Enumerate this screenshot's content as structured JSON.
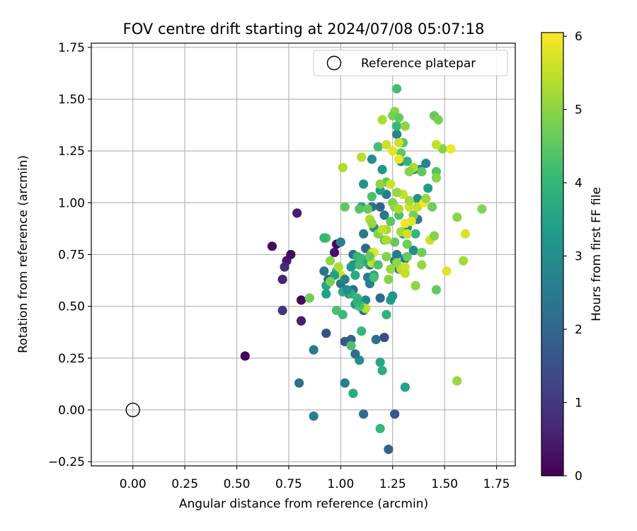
{
  "chart_data": {
    "type": "scatter",
    "title": "FOV centre drift starting at 2024/07/08 05:07:18",
    "xlabel": "Angular distance from reference (arcmin)",
    "ylabel": "Rotation from reference (arcmin)",
    "xlim": [
      -0.2,
      1.84
    ],
    "ylim": [
      -0.27,
      1.77
    ],
    "xticks": [
      0.0,
      0.25,
      0.5,
      0.75,
      1.0,
      1.25,
      1.5,
      1.75
    ],
    "xtick_labels": [
      "0.00",
      "0.25",
      "0.50",
      "0.75",
      "1.00",
      "1.25",
      "1.50",
      "1.75"
    ],
    "yticks": [
      -0.25,
      0.0,
      0.25,
      0.5,
      0.75,
      1.0,
      1.25,
      1.5,
      1.75
    ],
    "ytick_labels": [
      "−0.25",
      "0.00",
      "0.25",
      "0.50",
      "0.75",
      "1.00",
      "1.25",
      "1.50",
      "1.75"
    ],
    "grid": true,
    "legend": {
      "position": "top-right",
      "label": "Reference platepar"
    },
    "reference_point": {
      "x": 0.0,
      "y": 0.0
    },
    "colorbar": {
      "label": "Hours from first FF file",
      "colormap": "viridis",
      "range": [
        0,
        6.05
      ],
      "ticks": [
        0,
        1,
        2,
        3,
        4,
        5,
        6
      ],
      "tick_labels": [
        "0",
        "1",
        "2",
        "3",
        "4",
        "5",
        "6"
      ]
    },
    "points": [
      [
        0.54,
        0.26,
        0.1
      ],
      [
        0.67,
        0.79,
        0.15
      ],
      [
        0.74,
        0.72,
        0.4
      ],
      [
        0.76,
        0.75,
        0.2
      ],
      [
        0.73,
        0.69,
        0.7
      ],
      [
        0.72,
        0.63,
        0.6
      ],
      [
        0.79,
        0.95,
        0.5
      ],
      [
        0.72,
        0.48,
        0.9
      ],
      [
        0.81,
        0.53,
        0.1
      ],
      [
        0.81,
        0.43,
        0.5
      ],
      [
        0.97,
        0.76,
        0.3
      ],
      [
        0.98,
        0.8,
        0.2
      ],
      [
        0.93,
        0.37,
        1.5
      ],
      [
        1.21,
        0.35,
        1.4
      ],
      [
        1.26,
        -0.02,
        1.7
      ],
      [
        1.23,
        -0.19,
        1.9
      ],
      [
        1.11,
        -0.02,
        2.1
      ],
      [
        0.8,
        0.13,
        2.2
      ],
      [
        0.87,
        -0.03,
        2.6
      ],
      [
        0.87,
        0.29,
        2.5
      ],
      [
        1.02,
        0.13,
        2.6
      ],
      [
        1.05,
        0.34,
        1.9
      ],
      [
        1.02,
        0.33,
        1.6
      ],
      [
        0.94,
        0.63,
        1.8
      ],
      [
        1.0,
        0.61,
        2.3
      ],
      [
        1.04,
        0.56,
        2.7
      ],
      [
        1.07,
        0.51,
        3.0
      ],
      [
        1.09,
        0.24,
        3.0
      ],
      [
        1.07,
        0.27,
        2.2
      ],
      [
        1.06,
        0.58,
        2.0
      ],
      [
        1.11,
        0.48,
        2.2
      ],
      [
        1.12,
        0.53,
        2.8
      ],
      [
        1.14,
        0.61,
        2.6
      ],
      [
        1.17,
        0.34,
        2.2
      ],
      [
        1.19,
        0.54,
        2.1
      ],
      [
        1.16,
        0.65,
        3.3
      ],
      [
        1.13,
        0.64,
        2.5
      ],
      [
        1.14,
        0.7,
        2.0
      ],
      [
        1.06,
        0.75,
        2.2
      ],
      [
        1.12,
        0.78,
        2.0
      ],
      [
        1.11,
        0.85,
        2.5
      ],
      [
        1.15,
        0.98,
        2.1
      ],
      [
        1.19,
        0.98,
        1.9
      ],
      [
        1.21,
        0.94,
        2.4
      ],
      [
        1.16,
        0.88,
        3.0
      ],
      [
        1.1,
        0.98,
        3.3
      ],
      [
        1.11,
        1.09,
        3.1
      ],
      [
        1.2,
        1.16,
        3.2
      ],
      [
        1.22,
        1.04,
        2.5
      ],
      [
        1.19,
        1.06,
        3.3
      ],
      [
        1.15,
        1.21,
        3.0
      ],
      [
        1.27,
        1.33,
        2.7
      ],
      [
        1.27,
        0.75,
        2.5
      ],
      [
        1.26,
        0.72,
        2.6
      ],
      [
        1.28,
        0.68,
        2.2
      ],
      [
        1.31,
        0.73,
        2.3
      ],
      [
        1.32,
        0.88,
        2.8
      ],
      [
        1.35,
        0.77,
        2.9
      ],
      [
        1.37,
        0.92,
        2.5
      ],
      [
        1.3,
        0.85,
        3.5
      ],
      [
        1.37,
        1.02,
        3.0
      ],
      [
        1.35,
        1.16,
        3.1
      ],
      [
        1.38,
        1.16,
        2.7
      ],
      [
        1.41,
        1.19,
        2.8
      ],
      [
        1.42,
        1.07,
        3.4
      ],
      [
        1.29,
        1.2,
        2.6
      ],
      [
        1.3,
        1.29,
        4.4
      ],
      [
        1.32,
        1.2,
        3.9
      ],
      [
        1.24,
        0.91,
        4.5
      ],
      [
        1.28,
        0.94,
        4.3
      ],
      [
        1.36,
        0.85,
        4.0
      ],
      [
        1.29,
        1.24,
        4.5
      ],
      [
        1.27,
        1.37,
        4.0
      ],
      [
        1.26,
        1.44,
        5.0
      ],
      [
        1.25,
        1.42,
        4.8
      ],
      [
        1.27,
        1.55,
        4.2
      ],
      [
        1.28,
        1.41,
        4.6
      ],
      [
        1.31,
        1.37,
        5.0
      ],
      [
        1.18,
        1.27,
        4.2
      ],
      [
        1.22,
        1.1,
        4.5
      ],
      [
        1.19,
        1.09,
        5.0
      ],
      [
        1.2,
        1.4,
        5.3
      ],
      [
        1.25,
        1.0,
        4.8
      ],
      [
        1.24,
        1.09,
        5.6
      ],
      [
        1.15,
        1.03,
        4.3
      ],
      [
        1.13,
        0.97,
        4.6
      ],
      [
        1.09,
        0.97,
        4.4
      ],
      [
        1.1,
        1.22,
        5.4
      ],
      [
        1.01,
        1.17,
        5.3
      ],
      [
        1.21,
        0.82,
        4.6
      ],
      [
        1.18,
        0.85,
        4.9
      ],
      [
        1.14,
        0.92,
        5.3
      ],
      [
        1.15,
        0.9,
        5.1
      ],
      [
        1.26,
        0.98,
        5.0
      ],
      [
        1.28,
        0.97,
        5.3
      ],
      [
        1.33,
        0.98,
        5.6
      ],
      [
        1.3,
        1.04,
        5.5
      ],
      [
        1.27,
        1.05,
        5.1
      ],
      [
        1.33,
        1.01,
        5.2
      ],
      [
        1.35,
        0.94,
        4.8
      ],
      [
        1.37,
        0.98,
        5.5
      ],
      [
        1.4,
        1.0,
        6.0
      ],
      [
        1.41,
        1.02,
        5.1
      ],
      [
        1.44,
        0.98,
        4.7
      ],
      [
        1.39,
        1.15,
        4.5
      ],
      [
        1.46,
        1.15,
        4.4
      ],
      [
        1.46,
        1.12,
        4.9
      ],
      [
        1.45,
        1.42,
        4.6
      ],
      [
        1.47,
        1.4,
        4.8
      ],
      [
        1.49,
        1.26,
        4.9
      ],
      [
        1.46,
        1.28,
        5.5
      ],
      [
        1.53,
        1.26,
        5.9
      ],
      [
        1.35,
        1.17,
        5.3
      ],
      [
        1.33,
        1.15,
        4.9
      ],
      [
        1.28,
        1.29,
        5.6
      ],
      [
        1.28,
        1.21,
        5.9
      ],
      [
        1.25,
        1.25,
        5.8
      ],
      [
        1.22,
        1.28,
        5.6
      ],
      [
        1.02,
        0.98,
        4.5
      ],
      [
        0.95,
        0.72,
        5.0
      ],
      [
        0.93,
        0.83,
        4.5
      ],
      [
        0.92,
        0.83,
        4.0
      ],
      [
        1.0,
        0.81,
        2.6
      ],
      [
        0.98,
        0.67,
        4.0
      ],
      [
        0.99,
        0.69,
        5.3
      ],
      [
        1.0,
        0.65,
        5.6
      ],
      [
        0.97,
        0.65,
        3.4
      ],
      [
        0.93,
        0.6,
        3.5
      ],
      [
        0.92,
        0.67,
        2.3
      ],
      [
        0.95,
        0.62,
        4.8
      ],
      [
        0.93,
        0.56,
        3.4
      ],
      [
        1.01,
        0.57,
        3.7
      ],
      [
        1.05,
        0.56,
        3.8
      ],
      [
        1.08,
        0.54,
        4.0
      ],
      [
        1.03,
        0.58,
        3.0
      ],
      [
        1.02,
        0.63,
        2.7
      ],
      [
        1.07,
        0.65,
        3.7
      ],
      [
        1.06,
        0.7,
        3.0
      ],
      [
        1.05,
        0.69,
        3.3
      ],
      [
        1.08,
        0.74,
        3.9
      ],
      [
        1.09,
        0.7,
        4.2
      ],
      [
        1.1,
        0.73,
        4.1
      ],
      [
        1.13,
        0.71,
        3.6
      ],
      [
        1.15,
        0.76,
        4.8
      ],
      [
        1.15,
        0.71,
        5.5
      ],
      [
        1.16,
        0.76,
        5.8
      ],
      [
        1.14,
        0.74,
        4.6
      ],
      [
        1.16,
        0.64,
        4.2
      ],
      [
        1.18,
        0.7,
        4.3
      ],
      [
        1.1,
        0.5,
        4.4
      ],
      [
        1.12,
        0.49,
        5.4
      ],
      [
        1.09,
        0.5,
        4.3
      ],
      [
        1.08,
        0.52,
        3.9
      ],
      [
        0.98,
        0.48,
        4.3
      ],
      [
        1.01,
        0.46,
        4.1
      ],
      [
        0.85,
        0.54,
        4.7
      ],
      [
        1.05,
        0.31,
        4.3
      ],
      [
        1.1,
        0.38,
        4.0
      ],
      [
        1.19,
        0.23,
        3.6
      ],
      [
        1.2,
        0.19,
        3.8
      ],
      [
        1.06,
        0.08,
        3.7
      ],
      [
        1.31,
        0.11,
        3.5
      ],
      [
        1.19,
        -0.09,
        4.0
      ],
      [
        1.22,
        0.46,
        3.9
      ],
      [
        1.24,
        0.53,
        3.4
      ],
      [
        1.25,
        0.55,
        3.2
      ],
      [
        1.23,
        0.63,
        4.9
      ],
      [
        1.22,
        0.74,
        4.9
      ],
      [
        1.27,
        0.71,
        5.0
      ],
      [
        1.24,
        0.68,
        5.1
      ],
      [
        1.29,
        0.68,
        5.4
      ],
      [
        1.31,
        0.69,
        5.6
      ],
      [
        1.32,
        0.74,
        4.6
      ],
      [
        1.36,
        0.6,
        5.0
      ],
      [
        1.39,
        0.7,
        5.1
      ],
      [
        1.39,
        0.76,
        4.7
      ],
      [
        1.43,
        0.82,
        5.6
      ],
      [
        1.45,
        0.84,
        4.9
      ],
      [
        1.46,
        0.58,
        4.6
      ],
      [
        1.51,
        0.67,
        5.8
      ],
      [
        1.56,
        0.93,
        5.0
      ],
      [
        1.59,
        0.72,
        5.2
      ],
      [
        1.6,
        0.85,
        5.7
      ],
      [
        1.68,
        0.97,
        4.9
      ],
      [
        1.56,
        0.14,
        5.1
      ],
      [
        1.31,
        0.66,
        5.5
      ],
      [
        1.29,
        0.86,
        5.2
      ],
      [
        1.32,
        0.85,
        5.6
      ],
      [
        1.34,
        0.91,
        5.8
      ],
      [
        1.31,
        0.9,
        5.9
      ],
      [
        1.32,
        0.8,
        4.7
      ],
      [
        1.26,
        0.81,
        4.6
      ],
      [
        1.22,
        0.87,
        5.2
      ],
      [
        1.2,
        0.87,
        5.5
      ],
      [
        1.22,
        0.82,
        5.3
      ]
    ]
  }
}
